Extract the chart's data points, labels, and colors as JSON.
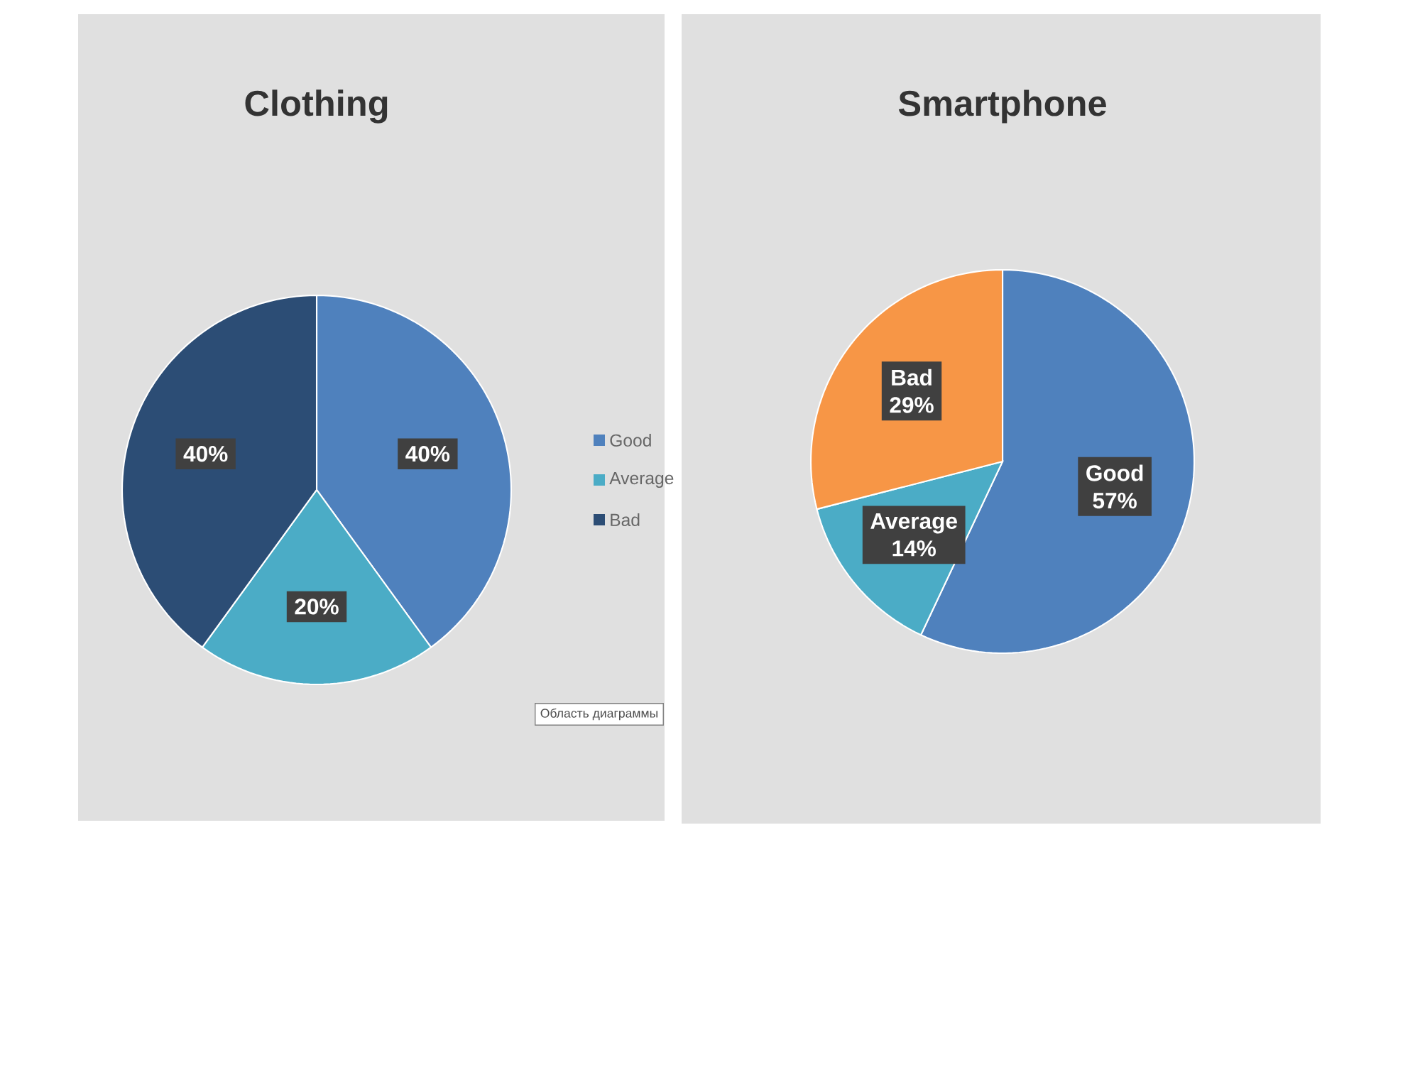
{
  "chart_data": [
    {
      "type": "pie",
      "title": "Clothing",
      "categories": [
        "Good",
        "Average",
        "Bad"
      ],
      "values": [
        40,
        20,
        40
      ],
      "colors": [
        "#4f81bd",
        "#4bacc6",
        "#2c4d75"
      ],
      "value_labels": [
        "40%",
        "20%",
        "40%"
      ],
      "legend": "right",
      "annotations": [
        "Область диаграммы"
      ]
    },
    {
      "type": "pie",
      "title": "Smartphone",
      "categories": [
        "Good",
        "Average",
        "Bad"
      ],
      "values": [
        57,
        14,
        29
      ],
      "colors": [
        "#4f81bd",
        "#4bacc6",
        "#f79646"
      ],
      "value_labels": [
        "57%",
        "14%",
        "29%"
      ],
      "legend": false
    }
  ]
}
